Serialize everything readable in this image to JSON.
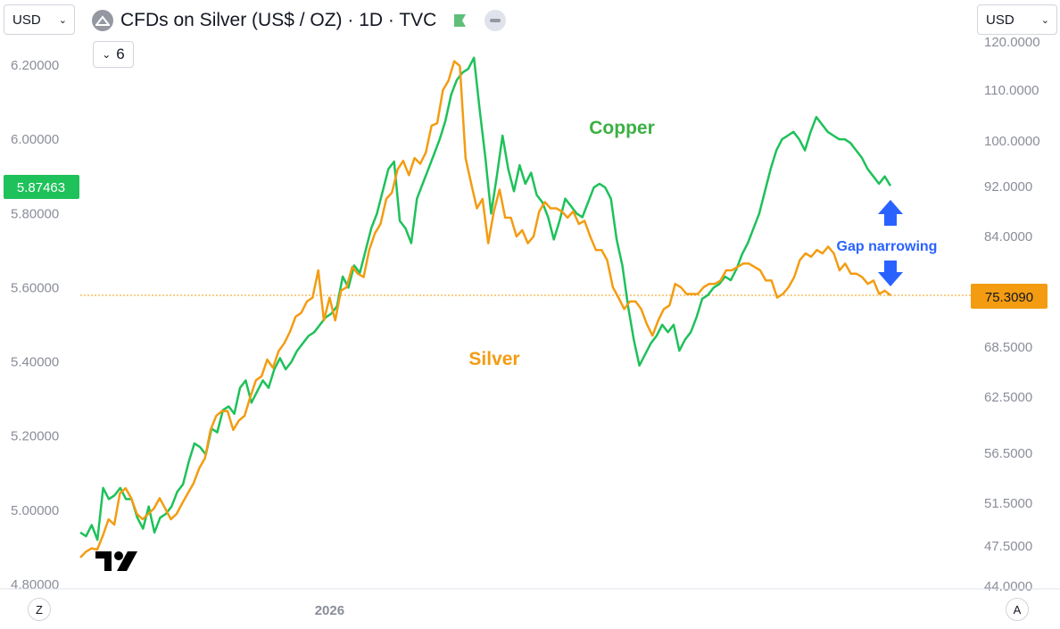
{
  "header": {
    "title": "CFDs on Silver (US$ / OZ) · 1D · TVC",
    "currency_left": "USD",
    "currency_right": "USD",
    "indicators_count": "6"
  },
  "axis_buttons": {
    "left": "Z",
    "right": "A"
  },
  "colors": {
    "silver": "#f39c12",
    "copper": "#1ec15a",
    "annotation": "#2962ff",
    "price_line": "#f39c12"
  },
  "chart_data": {
    "type": "line",
    "x_tick_labels": [
      {
        "label": "2026",
        "x_index": 44
      }
    ],
    "left_axis": {
      "ticks": [
        "6.20000",
        "6.00000",
        "5.80000",
        "5.60000",
        "5.40000",
        "5.20000",
        "5.00000",
        "4.80000"
      ],
      "range": [
        4.8,
        6.2
      ]
    },
    "right_axis": {
      "ticks": [
        "120.0000",
        "110.0000",
        "100.0000",
        "92.0000",
        "84.0000",
        "75.3090",
        "68.5000",
        "62.5000",
        "56.5000",
        "51.5000",
        "47.5000",
        "44.0000"
      ],
      "range": [
        44.0,
        120.0
      ]
    },
    "current_values": {
      "left": "5.87463",
      "right": "75.3090"
    },
    "annotations": {
      "copper_label": "Copper",
      "silver_label": "Silver",
      "gap_label": "Gap narrowing"
    },
    "series": [
      {
        "name": "Silver",
        "axis": "right",
        "values": [
          46.5,
          47,
          47.3,
          47.2,
          48.5,
          50,
          49.5,
          52.5,
          53,
          52,
          50.5,
          50,
          50.5,
          51,
          52,
          51,
          50,
          50.5,
          51.5,
          52.5,
          53.5,
          55,
          56,
          59,
          60.5,
          61,
          61,
          59,
          60,
          60.5,
          62.5,
          64.5,
          65,
          67,
          66,
          68,
          69,
          70.5,
          72.5,
          73,
          74.5,
          75,
          79,
          72,
          75,
          72,
          76,
          76.5,
          79.5,
          78.5,
          78,
          82,
          84.5,
          86,
          90,
          91,
          95,
          96.5,
          94,
          97,
          96,
          98,
          103,
          103.5,
          110,
          112,
          116,
          115,
          97,
          92.5,
          88.5,
          90,
          83,
          88,
          91.5,
          87,
          87,
          84,
          85,
          83,
          84,
          88,
          89.5,
          88.5,
          88.5,
          88,
          87,
          88,
          86,
          86.5,
          84,
          82,
          82,
          80.5,
          76.5,
          75,
          73.5,
          74.5,
          74.5,
          73.5,
          71.5,
          70,
          72,
          73.5,
          74,
          77,
          76.5,
          75.5,
          75.5,
          75.5,
          76.5,
          77,
          77,
          77.5,
          79,
          79,
          79.5,
          80,
          80,
          79.5,
          79,
          77.5,
          77.5,
          75,
          75.5,
          76.5,
          78,
          80.5,
          81.5,
          81,
          82,
          81.5,
          82.5,
          81.5,
          79,
          80,
          78.5,
          78.5,
          78,
          77,
          77.5,
          75.5,
          76,
          75.309
        ]
      },
      {
        "name": "Copper",
        "axis": "left",
        "values": [
          4.94,
          4.93,
          4.96,
          4.92,
          5.06,
          5.03,
          5.04,
          5.06,
          5.03,
          5.03,
          4.98,
          4.95,
          5.01,
          4.94,
          4.98,
          4.99,
          5.01,
          5.05,
          5.07,
          5.13,
          5.18,
          5.17,
          5.15,
          5.22,
          5.21,
          5.27,
          5.28,
          5.26,
          5.33,
          5.35,
          5.29,
          5.32,
          5.35,
          5.33,
          5.38,
          5.41,
          5.38,
          5.4,
          5.43,
          5.45,
          5.47,
          5.48,
          5.5,
          5.52,
          5.53,
          5.55,
          5.63,
          5.6,
          5.66,
          5.64,
          5.7,
          5.76,
          5.8,
          5.86,
          5.92,
          5.94,
          5.78,
          5.76,
          5.72,
          5.84,
          5.88,
          5.92,
          5.96,
          6.0,
          6.05,
          6.12,
          6.16,
          6.18,
          6.19,
          6.22,
          6.08,
          5.95,
          5.8,
          5.9,
          6.01,
          5.92,
          5.86,
          5.93,
          5.88,
          5.91,
          5.85,
          5.83,
          5.79,
          5.73,
          5.78,
          5.84,
          5.82,
          5.8,
          5.79,
          5.83,
          5.87,
          5.88,
          5.87,
          5.84,
          5.73,
          5.66,
          5.55,
          5.46,
          5.39,
          5.42,
          5.45,
          5.47,
          5.5,
          5.48,
          5.5,
          5.43,
          5.46,
          5.48,
          5.52,
          5.57,
          5.58,
          5.6,
          5.61,
          5.63,
          5.62,
          5.65,
          5.69,
          5.72,
          5.76,
          5.8,
          5.86,
          5.92,
          5.97,
          6.0,
          6.01,
          6.02,
          6.0,
          5.97,
          6.02,
          6.06,
          6.04,
          6.02,
          6.01,
          6.0,
          6.0,
          5.99,
          5.97,
          5.95,
          5.92,
          5.9,
          5.88,
          5.9,
          5.87463
        ]
      }
    ]
  }
}
